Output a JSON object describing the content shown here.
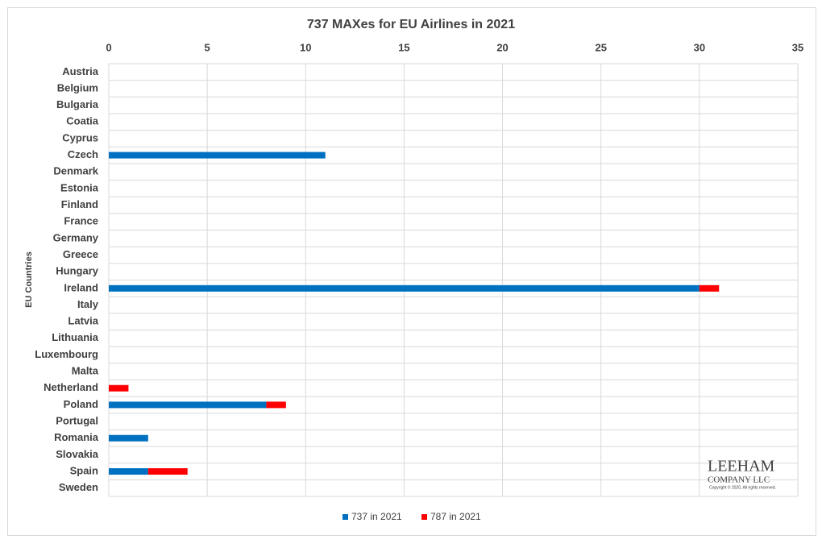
{
  "chart_data": {
    "type": "stacked_bar",
    "orientation": "horizontal",
    "title": "737 MAXes for EU Airlines in 2021",
    "y_label": "EU Countries",
    "categories": [
      "Austria",
      "Belgium",
      "Bulgaria",
      "Coatia",
      "Cyprus",
      "Czech",
      "Denmark",
      "Estonia",
      "Finland",
      "France",
      "Germany",
      "Greece",
      "Hungary",
      "Ireland",
      "Italy",
      "Latvia",
      "Lithuania",
      "Luxembourg",
      "Malta",
      "Netherland",
      "Poland",
      "Portugal",
      "Romania",
      "Slovakia",
      "Spain",
      "Sweden"
    ],
    "series": [
      {
        "name": "737 in 2021",
        "color": "#0070c0",
        "values": [
          0,
          0,
          0,
          0,
          0,
          11,
          0,
          0,
          0,
          0,
          0,
          0,
          0,
          30,
          0,
          0,
          0,
          0,
          0,
          0,
          8,
          0,
          2,
          0,
          2,
          0
        ]
      },
      {
        "name": "787 in 2021",
        "color": "#ff0000",
        "values": [
          0,
          0,
          0,
          0,
          0,
          0,
          0,
          0,
          0,
          0,
          0,
          0,
          0,
          1,
          0,
          0,
          0,
          0,
          0,
          1,
          1,
          0,
          0,
          0,
          2,
          0
        ]
      }
    ],
    "xlim": [
      0,
      35
    ],
    "xticks": [
      0,
      5,
      10,
      15,
      20,
      25,
      30,
      35
    ],
    "grid": true,
    "legend": "bottom",
    "annotations": [
      "LEEHAM",
      "COMPANY LLC",
      "Copyright © 2020, All rights reserved."
    ]
  }
}
